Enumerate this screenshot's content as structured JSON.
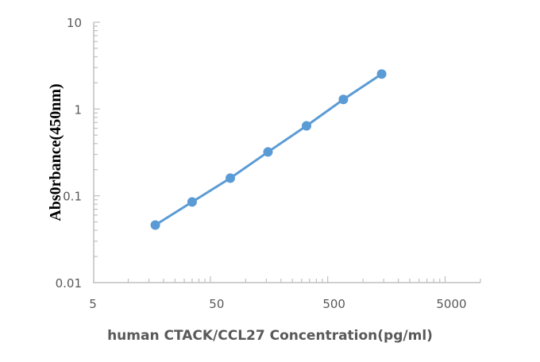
{
  "chart_data": {
    "type": "line",
    "title": "",
    "xlabel": "human CTACK/CCL27 Concentration(pg/ml)",
    "ylabel": "Abs0rbance(450nm)",
    "x_scale": "log",
    "y_scale": "log",
    "xlim": [
      5,
      10000
    ],
    "ylim": [
      0.01,
      10
    ],
    "x_ticks": [
      "5",
      "50",
      "500",
      "5000"
    ],
    "x_tick_values": [
      5,
      50,
      500,
      5000
    ],
    "y_ticks": [
      "10",
      "1",
      "0.1",
      "0.01"
    ],
    "y_tick_values": [
      10,
      1,
      0.1,
      0.01
    ],
    "grid": false,
    "series": [
      {
        "x": [
          17,
          35,
          74,
          155,
          330,
          680,
          1440
        ],
        "y": [
          0.046,
          0.085,
          0.16,
          0.32,
          0.64,
          1.29,
          2.53
        ],
        "color": "#5b9bd5",
        "markers": true
      }
    ]
  }
}
